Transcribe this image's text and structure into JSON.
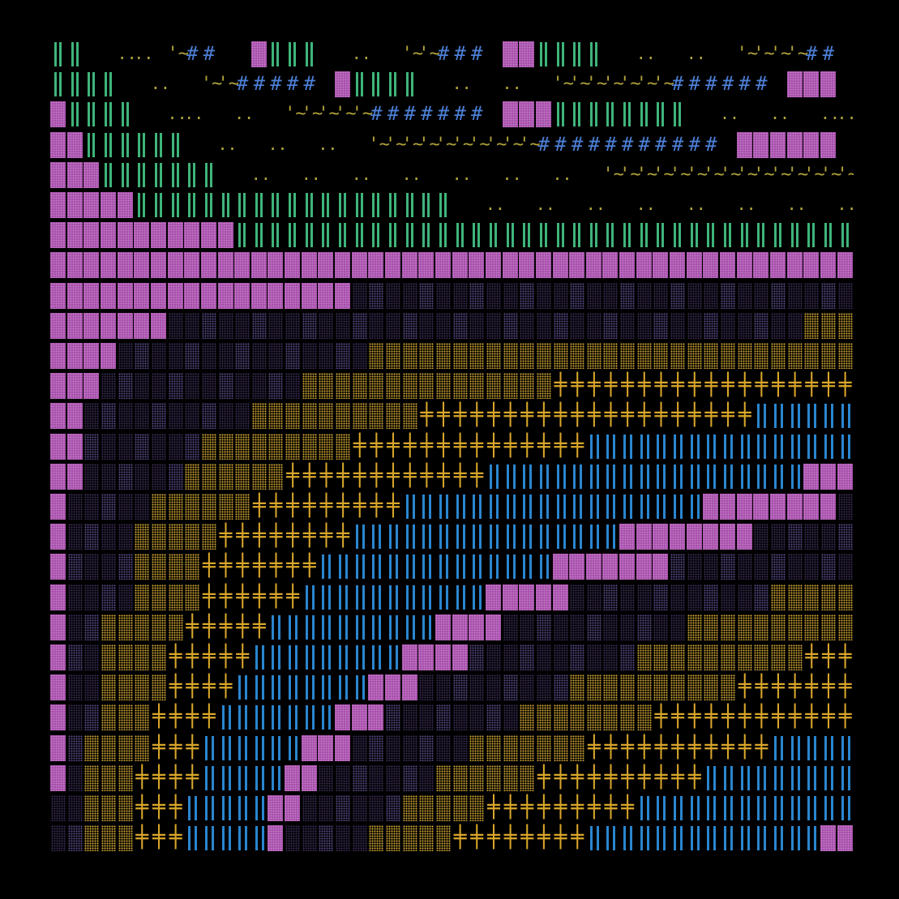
{
  "palette": {
    "background": "#000000",
    "magenta": "#a24aa6",
    "magenta_dots": "#c57ccb",
    "green": "#3fb47a",
    "olive": "#b2a43a",
    "blue_hash": "#4c7fd6",
    "gold": "#d9a62a",
    "gold_dots": "#cfa633",
    "blue_bar": "#2a86cf",
    "dark_dots": "#3a2d55",
    "mid_dots": "#5a4a86"
  },
  "glyph_legend": {
    "M": "magenta-block",
    "D": "dark-dot-block",
    "G": "gold-dot-block",
    "P": "gold-plus",
    "B": "blue-bars",
    "L": "green-bars",
    "d": "olive-dots",
    "w": "olive-wave",
    "h": "blue-hash",
    ".": "empty"
  },
  "rows": [
    "LL..dd.w#h..MLLL..d..ww#hh.MMLLLL..d..d..w~ww##.",
    "LLLL..d..ww#hhhh.MLLLL..d..d..ww~ww~~hhhhhh.MMM",
    "MLLLL..dd..d..ww~w~hhhhhhh.MMMLLLLLLLL..d..d..dd..",
    "MMLLLLLL..d..d..d..ww~w~w~w~whhhhhhhhhhh.MMMMMM",
    "MMMLLLLLLL..d..d..d..d..d..d..d..ww~ww~ww~ww~ww~w",
    "MMMMMLLLLLLLLLLLLLLLLLLL..d..d..d..d..d..d..d..d..d",
    "MMMMMMMMMMMLLLLLLLLLLLLLLLLLLLLLLLLLLLLLLLLLLLLL",
    "MMMMMMMMMMMMMMMMMMMMMMMMMMMMMMMMMMMMMMMMMMMMMMMMMM",
    "MMMMMMMMMMMMMMMMMMDDDDDDDDDDDDDDDDDDDDDDDDDDDDDDDD",
    "MMMMMMMDDDDDDDDDDDDDDDDDDDDDDDDDDDDDDDDDDDDDDGGGGG",
    "MMMMDDDDDDDDDDDDDDDGGGGGGGGGGGGGGGGGGGGGGGGGGGGGG",
    "MMMDDDDDDDDDDDDGGGGGGGGGGGGGGGPPPPPPPPPPPPPPPPPP.",
    "MMDDDDDDDDDDGGGGGGGGGGPPPPPPPPPPPPPPPPPPPPBBBBBB",
    "MMDDDDDDDGGGGGGGGGPPPPPPPPPPPPPPBBBBBBBBBBBBBBBBB",
    "MMDDDDDDGGGGGGPPPPPPPPPPPPBBBBBBBBBBBBBBBBBBBMMMMM",
    "MDDDDDGGGGGGPPPPPPPPPBBBBBBBBBBBBBBBBBBMMMMMMMMDDDD",
    "MDDDDGGGGGPPPPPPPPBBBBBBBBBBBBBBBBMMMMMMMMDDDDDDDDD",
    "MDDDDGGGGPPPPPPPBBBBBBBBBBBBBBMMMMMMMDDDDDDDDDDDDDG",
    "MDDDDGGGGPPPPPPBBBBBBBBBBBMMMMMDDDDDDDDDDDDGGGGGGGGG",
    "MDDGGGGGPPPPPBBBBBBBBBBMMMMDDDDDDDDDDDGGGGGGGGGGGGG",
    "MDDGGGGPPPPPBBBBBBBBBMMMMDDDDDDDDDDGGGGGGGGGGPPPPPP",
    "MDDGGGGPPPPBBBBBBBBMMMDDDDDDDDDGGGGGGGGGGPPPPPPPPPPP",
    "MDDGGGPPPPBBBBBBBMMMDDDDDDDDGGGGGGGGPPPPPPPPPPPPBBBB",
    "MDGGGGPPPBBBBBBMMMDDDDDDDGGGGGGGPPPPPPPPPPPBBBBBBBBB",
    "MDGGGPPPPBBBBBMMDDDDDDDGGGGGGPPPPPPPPPPBBBBBBBBBBBBB",
    "DDGGGPPPBBBBBMMDDDDDDGGGGGPPPPPPPPPBBBBBBBBBBBBBBMMM",
    "DDGGGPPPBBBBBMDDDDDGGGGGPPPPPPPPBBBBBBBBBBBBBBMMMMMM"
  ]
}
